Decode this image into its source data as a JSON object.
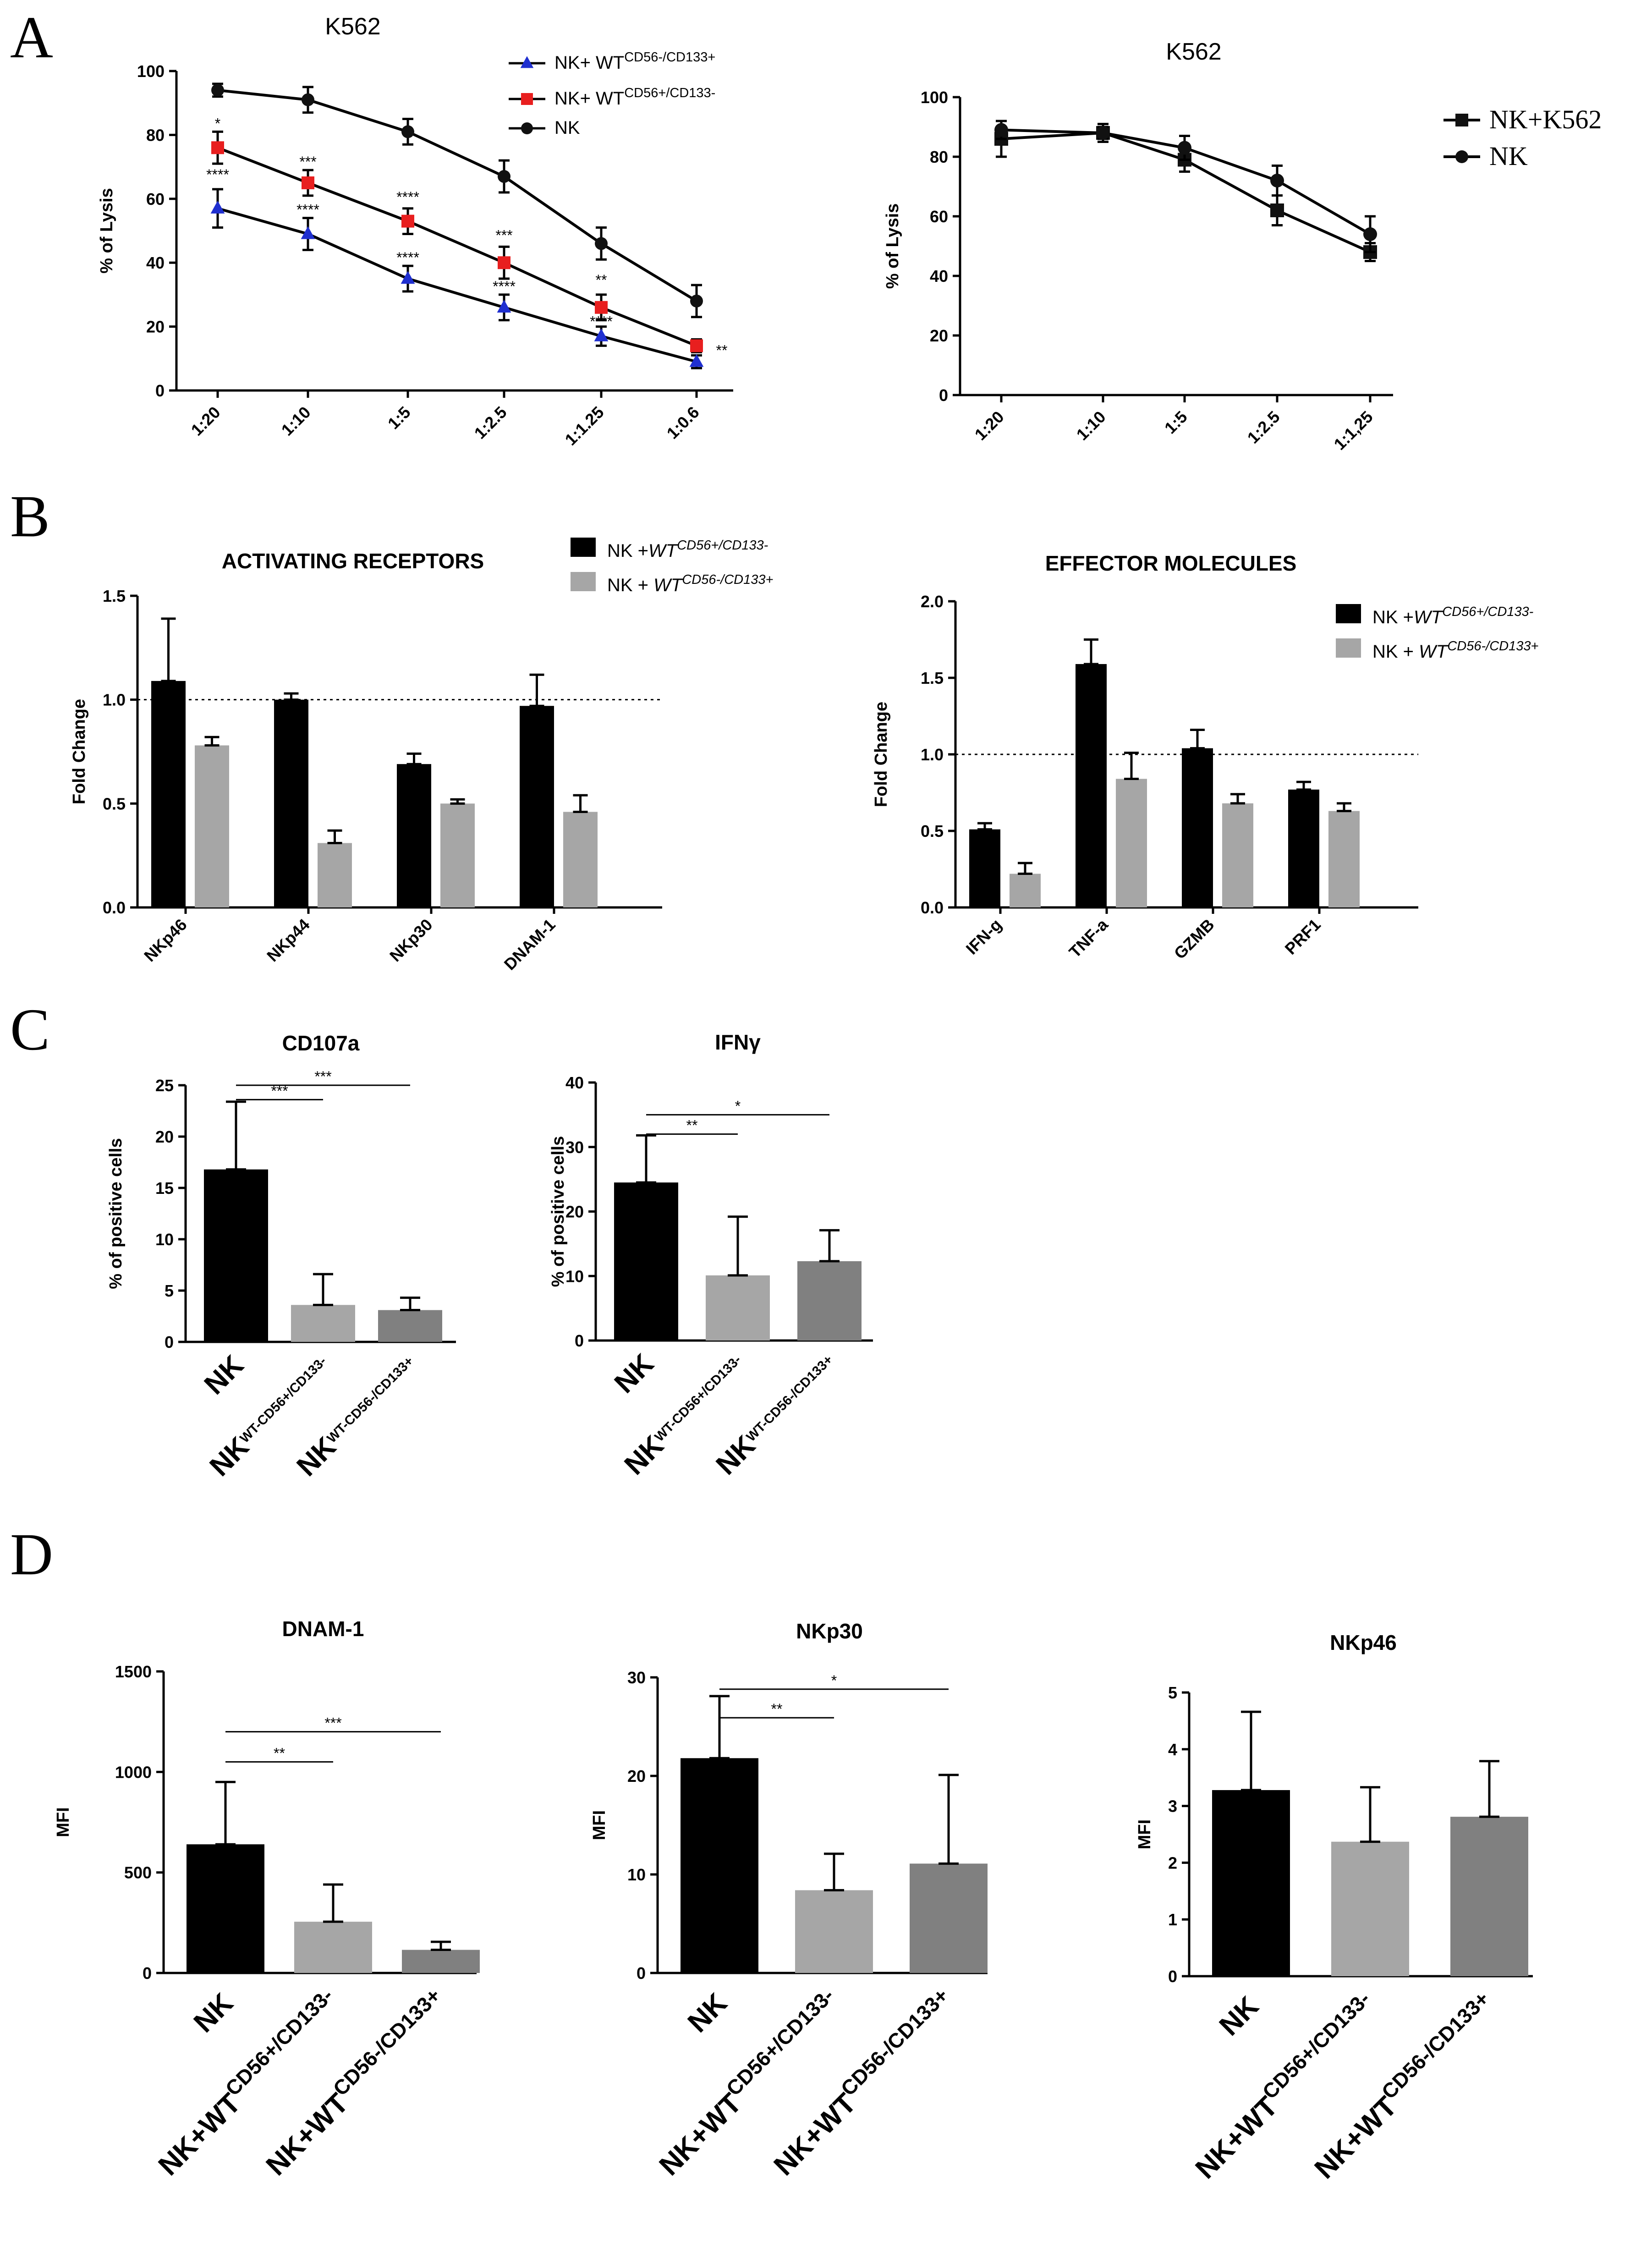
{
  "panel_letters": [
    "A",
    "B",
    "C",
    "D"
  ],
  "chart_data": [
    {
      "id": "A1",
      "type": "line",
      "title": "K562",
      "ylabel": "% of Lysis",
      "categories": [
        "1:20",
        "1:10",
        "1:5",
        "1:2.5",
        "1:1.25",
        "1:0.6"
      ],
      "ylim": [
        0,
        100
      ],
      "yticks": [
        0,
        20,
        40,
        60,
        80,
        100
      ],
      "series": [
        {
          "name_parts": [
            [
              "NK+ WT",
              ""
            ],
            [
              "CD56-/CD133+",
              "super"
            ]
          ],
          "values": [
            57,
            49,
            35,
            26,
            17,
            9
          ],
          "err": [
            6,
            5,
            4,
            4,
            3,
            2
          ],
          "color": "#1f2fd0",
          "marker": "triangle"
        },
        {
          "name_parts": [
            [
              "NK+ WT",
              ""
            ],
            [
              "CD56+/CD133-",
              "super"
            ]
          ],
          "values": [
            76,
            65,
            53,
            40,
            26,
            14
          ],
          "err": [
            5,
            4,
            4,
            5,
            4,
            2
          ],
          "color": "#e81f1f",
          "marker": "square"
        },
        {
          "name_parts": [
            [
              "NK",
              ""
            ]
          ],
          "values": [
            94,
            91,
            81,
            67,
            46,
            28
          ],
          "err": [
            2,
            4,
            4,
            5,
            5,
            5
          ],
          "color": "#111111",
          "marker": "circle"
        }
      ],
      "annotations": [
        {
          "text": "*",
          "cat": 0,
          "y": 82
        },
        {
          "text": "****",
          "cat": 0,
          "y": 66
        },
        {
          "text": "***",
          "cat": 1,
          "y": 70
        },
        {
          "text": "****",
          "cat": 1,
          "y": 55
        },
        {
          "text": "****",
          "cat": 2,
          "y": 59
        },
        {
          "text": "****",
          "cat": 2,
          "y": 40
        },
        {
          "text": "***",
          "cat": 3,
          "y": 47
        },
        {
          "text": "****",
          "cat": 3,
          "y": 31
        },
        {
          "text": "**",
          "cat": 4,
          "y": 33
        },
        {
          "text": "****",
          "cat": 4,
          "y": 20
        },
        {
          "text": "**",
          "cat": 5,
          "y": 11
        }
      ],
      "legend_position": "top-right"
    },
    {
      "id": "A2",
      "type": "line",
      "title": "K562",
      "ylabel": "% of Lysis",
      "categories": [
        "1:20",
        "1:10",
        "1:5",
        "1:2.5",
        "1:1,25"
      ],
      "ylim": [
        0,
        100
      ],
      "yticks": [
        0,
        20,
        40,
        60,
        80,
        100
      ],
      "series": [
        {
          "name_parts": [
            [
              "NK+K562",
              ""
            ]
          ],
          "values": [
            86,
            88,
            79,
            62,
            48
          ],
          "err": [
            6,
            3,
            4,
            5,
            3
          ],
          "color": "#111111",
          "marker": "square"
        },
        {
          "name_parts": [
            [
              "NK",
              ""
            ]
          ],
          "values": [
            89,
            88,
            83,
            72,
            54
          ],
          "err": [
            3,
            2,
            4,
            5,
            6
          ],
          "color": "#111111",
          "marker": "circle"
        }
      ],
      "legend_position": "right"
    },
    {
      "id": "B1",
      "type": "bar",
      "title": "ACTIVATING RECEPTORS",
      "ylabel": "Fold Change",
      "categories": [
        "NKp46",
        "NKp44",
        "NKp30",
        "DNAM-1"
      ],
      "ylim": [
        0,
        1.5
      ],
      "yticks": [
        "0.0",
        "0.5",
        "1.0",
        "1.5"
      ],
      "reference_line": 1.0,
      "series": [
        {
          "name_parts": [
            [
              "NK +",
              ""
            ],
            [
              "WT",
              "ital"
            ],
            [
              "CD56+/CD133-",
              "superital"
            ]
          ],
          "values": [
            1.09,
            1.0,
            0.69,
            0.97
          ],
          "err": [
            0.3,
            0.03,
            0.05,
            0.15
          ],
          "color": "#000000"
        },
        {
          "name_parts": [
            [
              "NK + ",
              ""
            ],
            [
              "WT",
              "ital"
            ],
            [
              "CD56-/CD133+",
              "superital"
            ]
          ],
          "values": [
            0.78,
            0.31,
            0.5,
            0.46
          ],
          "err": [
            0.04,
            0.06,
            0.02,
            0.08
          ],
          "color": "#a6a6a6"
        }
      ],
      "legend_position": "top-right"
    },
    {
      "id": "B2",
      "type": "bar",
      "title": "EFFECTOR MOLECULES",
      "ylabel": "Fold Change",
      "categories": [
        "IFN-g",
        "TNF-a",
        "GZMB",
        "PRF1"
      ],
      "ylim": [
        0,
        2.0
      ],
      "yticks": [
        "0.0",
        "0.5",
        "1.0",
        "1.5",
        "2.0"
      ],
      "reference_line": 1.0,
      "series": [
        {
          "name_parts": [
            [
              "NK +",
              ""
            ],
            [
              "WT",
              "ital"
            ],
            [
              "CD56+/CD133-",
              "superital"
            ]
          ],
          "values": [
            0.51,
            1.59,
            1.04,
            0.77
          ],
          "err": [
            0.04,
            0.16,
            0.12,
            0.05
          ],
          "color": "#000000"
        },
        {
          "name_parts": [
            [
              "NK + ",
              ""
            ],
            [
              "WT",
              "ital"
            ],
            [
              "CD56-/CD133+",
              "superital"
            ]
          ],
          "values": [
            0.22,
            0.84,
            0.68,
            0.63
          ],
          "err": [
            0.07,
            0.17,
            0.06,
            0.05
          ],
          "color": "#a6a6a6"
        }
      ],
      "legend_position": "top-right"
    },
    {
      "id": "C1",
      "type": "bar",
      "title": "CD107a",
      "ylabel": "% of positive cells",
      "categories": [
        [
          [
            "NK",
            ""
          ]
        ],
        [
          [
            "NK",
            ""
          ],
          [
            "WT-CD56+/CD133-",
            "super"
          ]
        ],
        [
          [
            "NK",
            ""
          ],
          [
            "WT-CD56-/CD133+",
            "super"
          ]
        ]
      ],
      "ylim": [
        0,
        25
      ],
      "yticks": [
        0,
        5,
        10,
        15,
        20,
        25
      ],
      "values": [
        16.8,
        3.6,
        3.1
      ],
      "err": [
        6.6,
        3.0,
        1.2
      ],
      "colors": [
        "#000000",
        "#a6a6a6",
        "#808080"
      ],
      "significance": [
        {
          "from": 0,
          "to": 1,
          "y": 23.6,
          "text": "***"
        },
        {
          "from": 0,
          "to": 2,
          "y": 25,
          "text": "***"
        }
      ]
    },
    {
      "id": "C2",
      "type": "bar",
      "title": "IFNγ",
      "ylabel": "% of positive cells",
      "categories": [
        [
          [
            "NK",
            ""
          ]
        ],
        [
          [
            "NK",
            ""
          ],
          [
            "WT-CD56+/CD133-",
            "super"
          ]
        ],
        [
          [
            "NK",
            ""
          ],
          [
            "WT-CD56-/CD133+",
            "super"
          ]
        ]
      ],
      "ylim": [
        0,
        40
      ],
      "yticks": [
        0,
        10,
        20,
        30,
        40
      ],
      "values": [
        24.5,
        10.1,
        12.3
      ],
      "err": [
        7.3,
        9.1,
        4.8
      ],
      "colors": [
        "#000000",
        "#a6a6a6",
        "#808080"
      ],
      "significance": [
        {
          "from": 0,
          "to": 1,
          "y": 32.0,
          "text": "**"
        },
        {
          "from": 0,
          "to": 2,
          "y": 35.0,
          "text": "*"
        }
      ]
    },
    {
      "id": "D1",
      "type": "bar",
      "title": "DNAM-1",
      "ylabel": "MFI",
      "categories": [
        [
          [
            "NK",
            ""
          ]
        ],
        [
          [
            "NK+WT",
            ""
          ],
          [
            "CD56+/CD133-",
            "super"
          ]
        ],
        [
          [
            "NK+WT",
            ""
          ],
          [
            "CD56-/CD133+",
            "super"
          ]
        ]
      ],
      "ylim": [
        0,
        1500
      ],
      "yticks": [
        0,
        500,
        1000,
        1500
      ],
      "values": [
        640,
        255,
        115
      ],
      "err": [
        310,
        185,
        40
      ],
      "colors": [
        "#000000",
        "#a6a6a6",
        "#808080"
      ],
      "significance": [
        {
          "from": 0,
          "to": 1,
          "y": 1050,
          "text": "**"
        },
        {
          "from": 0,
          "to": 2,
          "y": 1200,
          "text": "***"
        }
      ]
    },
    {
      "id": "D2",
      "type": "bar",
      "title": "NKp30",
      "ylabel": "MFI",
      "categories": [
        [
          [
            "NK",
            ""
          ]
        ],
        [
          [
            "NK+WT",
            ""
          ],
          [
            "CD56+/CD133-",
            "super"
          ]
        ],
        [
          [
            "NK+WT",
            ""
          ],
          [
            "CD56-/CD133+",
            "super"
          ]
        ]
      ],
      "ylim": [
        0,
        30
      ],
      "yticks": [
        0,
        10,
        20,
        30
      ],
      "values": [
        21.8,
        8.4,
        11.1
      ],
      "err": [
        6.3,
        3.7,
        9.0
      ],
      "colors": [
        "#000000",
        "#a6a6a6",
        "#808080"
      ],
      "significance": [
        {
          "from": 0,
          "to": 1,
          "y": 25.9,
          "text": "**"
        },
        {
          "from": 0,
          "to": 2,
          "y": 28.8,
          "text": "*"
        }
      ]
    },
    {
      "id": "D3",
      "type": "bar",
      "title": "NKp46",
      "ylabel": "MFI",
      "categories": [
        [
          [
            "NK",
            ""
          ]
        ],
        [
          [
            "NK+WT",
            ""
          ],
          [
            "CD56+/CD133-",
            "super"
          ]
        ],
        [
          [
            "NK+WT",
            ""
          ],
          [
            "CD56-/CD133+",
            "super"
          ]
        ]
      ],
      "ylim": [
        0,
        5
      ],
      "yticks": [
        0,
        1,
        2,
        3,
        4,
        5
      ],
      "values": [
        3.28,
        2.37,
        2.81
      ],
      "err": [
        1.38,
        0.96,
        0.98
      ],
      "colors": [
        "#000000",
        "#a6a6a6",
        "#808080"
      ],
      "significance": []
    }
  ]
}
